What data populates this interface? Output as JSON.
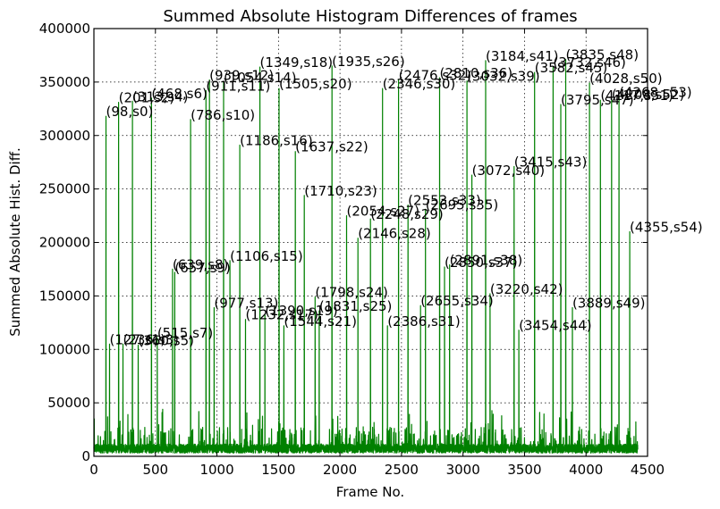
{
  "chart_data": {
    "type": "line",
    "title": "Summed Absolute Histogram Differences of frames",
    "xlabel": "Frame No.",
    "ylabel": "Summed Absolute Hist. Diff.",
    "xlim": [
      0,
      4500
    ],
    "ylim": [
      0,
      400000
    ],
    "xticks": [
      0,
      500,
      1000,
      1500,
      2000,
      2500,
      3000,
      3500,
      4000,
      4500
    ],
    "yticks": [
      0,
      50000,
      100000,
      150000,
      200000,
      250000,
      300000,
      350000,
      400000
    ],
    "grid": true,
    "line_color": "#008000",
    "peaks": [
      {
        "x": 98,
        "y": 318000,
        "label": "(98,s0)"
      },
      {
        "x": 127,
        "y": 105000,
        "label": "(127,s1)"
      },
      {
        "x": 201,
        "y": 331000,
        "label": "(201,s2)"
      },
      {
        "x": 236,
        "y": 105000,
        "label": "(236,s3)"
      },
      {
        "x": 313,
        "y": 332000,
        "label": "(313,s4)"
      },
      {
        "x": 360,
        "y": 104000,
        "label": "(360,s5)"
      },
      {
        "x": 468,
        "y": 335000,
        "label": "(468,s6)"
      },
      {
        "x": 515,
        "y": 111000,
        "label": "(515,s7)"
      },
      {
        "x": 639,
        "y": 175000,
        "label": "(639,s8)"
      },
      {
        "x": 657,
        "y": 172000,
        "label": "(657,s9)"
      },
      {
        "x": 786,
        "y": 315000,
        "label": "(786,s10)"
      },
      {
        "x": 911,
        "y": 342000,
        "label": "(911,s11)"
      },
      {
        "x": 939,
        "y": 352000,
        "label": "(939,s12)"
      },
      {
        "x": 977,
        "y": 139000,
        "label": "(977,s13)"
      },
      {
        "x": 1054,
        "y": 350000,
        "label": "(1054,s14)"
      },
      {
        "x": 1106,
        "y": 183000,
        "label": "(1106,s15)"
      },
      {
        "x": 1186,
        "y": 291000,
        "label": "(1186,s16)"
      },
      {
        "x": 1232,
        "y": 128000,
        "label": "(1232,s17)"
      },
      {
        "x": 1349,
        "y": 364000,
        "label": "(1349,s18)"
      },
      {
        "x": 1390,
        "y": 132000,
        "label": "(1390,s19)"
      },
      {
        "x": 1505,
        "y": 344000,
        "label": "(1505,s20)"
      },
      {
        "x": 1544,
        "y": 122000,
        "label": "(1544,s21)"
      },
      {
        "x": 1637,
        "y": 285000,
        "label": "(1637,s22)"
      },
      {
        "x": 1710,
        "y": 244000,
        "label": "(1710,s23)"
      },
      {
        "x": 1798,
        "y": 149000,
        "label": "(1798,s24)"
      },
      {
        "x": 1831,
        "y": 136000,
        "label": "(1831,s25)"
      },
      {
        "x": 1935,
        "y": 365000,
        "label": "(1935,s26)"
      },
      {
        "x": 2054,
        "y": 225000,
        "label": "(2054,s27)"
      },
      {
        "x": 2146,
        "y": 204000,
        "label": "(2146,s28)"
      },
      {
        "x": 2248,
        "y": 222000,
        "label": "(2248,s29)"
      },
      {
        "x": 2346,
        "y": 344000,
        "label": "(2346,s30)"
      },
      {
        "x": 2386,
        "y": 122000,
        "label": "(2386,s31)"
      },
      {
        "x": 2476,
        "y": 352000,
        "label": "(2476,s32)"
      },
      {
        "x": 2553,
        "y": 235000,
        "label": "(2553,s33)"
      },
      {
        "x": 2655,
        "y": 141000,
        "label": "(2655,s34)"
      },
      {
        "x": 2695,
        "y": 231000,
        "label": "(2695,s35)"
      },
      {
        "x": 2810,
        "y": 354000,
        "label": "(2810,s36)"
      },
      {
        "x": 2850,
        "y": 177000,
        "label": "(2850,s37)"
      },
      {
        "x": 2891,
        "y": 179000,
        "label": "(2891,s38)"
      },
      {
        "x": 3032,
        "y": 351000,
        "label": "(3032,s39)"
      },
      {
        "x": 3072,
        "y": 263000,
        "label": "(3072,s40)"
      },
      {
        "x": 3184,
        "y": 370000,
        "label": "(3184,s41)"
      },
      {
        "x": 3220,
        "y": 152000,
        "label": "(3220,s42)"
      },
      {
        "x": 3415,
        "y": 271000,
        "label": "(3415,s43)"
      },
      {
        "x": 3454,
        "y": 118000,
        "label": "(3454,s44)"
      },
      {
        "x": 3582,
        "y": 359000,
        "label": "(3582,s45)"
      },
      {
        "x": 3732,
        "y": 364000,
        "label": "(3732,s46)"
      },
      {
        "x": 3795,
        "y": 329000,
        "label": "(3795,s47)"
      },
      {
        "x": 3835,
        "y": 371000,
        "label": "(3835,s48)"
      },
      {
        "x": 3889,
        "y": 139000,
        "label": "(3889,s49)"
      },
      {
        "x": 4028,
        "y": 349000,
        "label": "(4028,s50)"
      },
      {
        "x": 4117,
        "y": 333000,
        "label": "(4117,s51)"
      },
      {
        "x": 4208,
        "y": 334000,
        "label": "(4208,s52)"
      },
      {
        "x": 4268,
        "y": 336000,
        "label": "(4268,s53)"
      },
      {
        "x": 4355,
        "y": 210000,
        "label": "(4355,s54)"
      }
    ],
    "baseline": {
      "x_end": 4420
    }
  }
}
